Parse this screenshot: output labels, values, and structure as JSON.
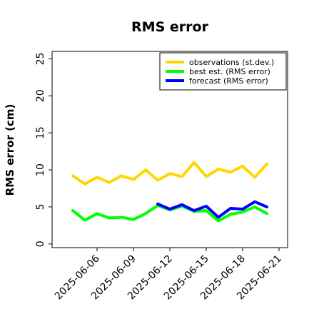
{
  "chart_data": {
    "type": "line",
    "title": "RMS error",
    "ylabel": "RMS error (cm)",
    "xlabel": "",
    "ylim": [
      -0.5,
      26
    ],
    "yticks": [
      0,
      5,
      10,
      15,
      20,
      25
    ],
    "x": [
      "2025-06-04",
      "2025-06-05",
      "2025-06-06",
      "2025-06-07",
      "2025-06-08",
      "2025-06-09",
      "2025-06-10",
      "2025-06-11",
      "2025-06-12",
      "2025-06-13",
      "2025-06-14",
      "2025-06-15",
      "2025-06-16",
      "2025-06-17",
      "2025-06-18",
      "2025-06-19",
      "2025-06-20",
      "2025-06-21"
    ],
    "xticks": [
      {
        "label": "2025-06-06",
        "color": "#000000"
      },
      {
        "label": "2025-06-09",
        "color": "#000000"
      },
      {
        "label": "2025-06-12",
        "color": "#2e8b2e"
      },
      {
        "label": "2025-06-15",
        "color": "#000000"
      },
      {
        "label": "2025-06-18",
        "color": "#000000"
      },
      {
        "label": "2025-06-21",
        "color": "#000000"
      }
    ],
    "series": [
      {
        "name": "observations (st.dev.)",
        "color": "#ffd700",
        "values": [
          9.2,
          8.1,
          9.0,
          8.3,
          9.2,
          8.7,
          10.0,
          8.6,
          9.5,
          9.1,
          11.0,
          9.1,
          10.1,
          9.7,
          10.5,
          9.0,
          10.8,
          null
        ]
      },
      {
        "name": "best est. (RMS error)",
        "color": "#00ff00",
        "values": [
          4.5,
          3.2,
          4.1,
          3.5,
          3.6,
          3.3,
          4.1,
          5.2,
          4.6,
          5.1,
          4.4,
          4.5,
          3.1,
          4.0,
          4.3,
          5.0,
          4.1,
          null
        ]
      },
      {
        "name": "forecast (RMS error)",
        "color": "#0000ff",
        "values": [
          null,
          null,
          null,
          null,
          null,
          null,
          null,
          5.4,
          4.7,
          5.3,
          4.5,
          5.1,
          3.6,
          4.8,
          4.7,
          5.7,
          5.0,
          null
        ]
      }
    ],
    "legend_position": "top-right",
    "grid": false
  }
}
